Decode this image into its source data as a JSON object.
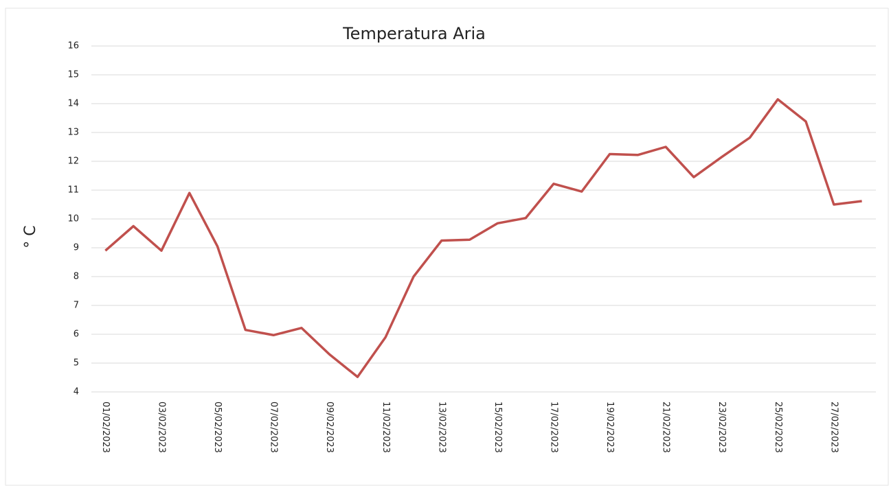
{
  "chart_data": {
    "type": "line",
    "title": "Temperatura  Aria",
    "y_label": "° C",
    "categories": [
      "01/02/2023",
      null,
      "03/02/2023",
      null,
      "05/02/2023",
      null,
      "07/02/2023",
      null,
      "09/02/2023",
      null,
      "11/02/2023",
      null,
      "13/02/2023",
      null,
      "15/02/2023",
      null,
      "17/02/2023",
      null,
      "19/02/2023",
      null,
      "21/02/2023",
      null,
      "23/02/2023",
      null,
      "25/02/2023",
      null,
      "27/02/2023",
      null
    ],
    "values": [
      8.9,
      9.75,
      8.9,
      10.9,
      9.05,
      6.15,
      5.97,
      6.22,
      5.3,
      4.52,
      5.9,
      8.0,
      9.25,
      9.28,
      9.85,
      10.03,
      11.22,
      10.95,
      12.25,
      12.22,
      12.5,
      11.45,
      12.15,
      12.82,
      14.15,
      13.38,
      10.5,
      10.62
    ],
    "color": "#c0504d",
    "ylim": [
      4,
      16
    ],
    "yticks": [
      4,
      5,
      6,
      7,
      8,
      9,
      10,
      11,
      12,
      13,
      14,
      15,
      16
    ],
    "grid": true
  }
}
